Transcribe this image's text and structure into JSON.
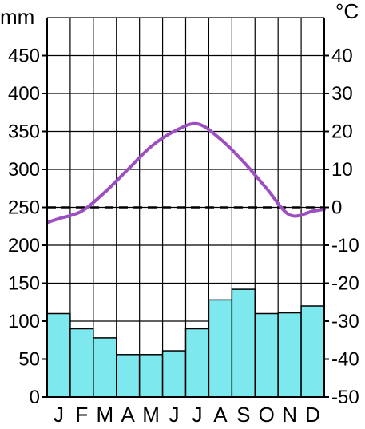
{
  "chart_data": {
    "type": "bar",
    "categories": [
      "J",
      "F",
      "M",
      "A",
      "M",
      "J",
      "J",
      "A",
      "S",
      "O",
      "N",
      "D"
    ],
    "series": [
      {
        "type": "bar",
        "axis": "left",
        "values": [
          110,
          90,
          78,
          56,
          56,
          61,
          90,
          128,
          142,
          110,
          111,
          120
        ],
        "color": "#7ee8ef"
      },
      {
        "type": "line",
        "axis": "right",
        "values": [
          -3,
          -1,
          4,
          10,
          16,
          20,
          22,
          18,
          12,
          5,
          -2,
          -1
        ],
        "color": "#9b4fc1"
      }
    ],
    "y_left": {
      "unit": "mm",
      "lim": [
        0,
        500
      ],
      "ticks": [
        0,
        50,
        100,
        150,
        200,
        250,
        300,
        350,
        400,
        450
      ]
    },
    "y_right": {
      "unit": "°C",
      "lim": [
        -50,
        50
      ],
      "ticks": [
        -50,
        -40,
        -30,
        -20,
        -10,
        0,
        10,
        20,
        30,
        40
      ]
    },
    "reference_line": {
      "axis": "right",
      "value": 0,
      "style": "dashed"
    },
    "grid": true
  }
}
